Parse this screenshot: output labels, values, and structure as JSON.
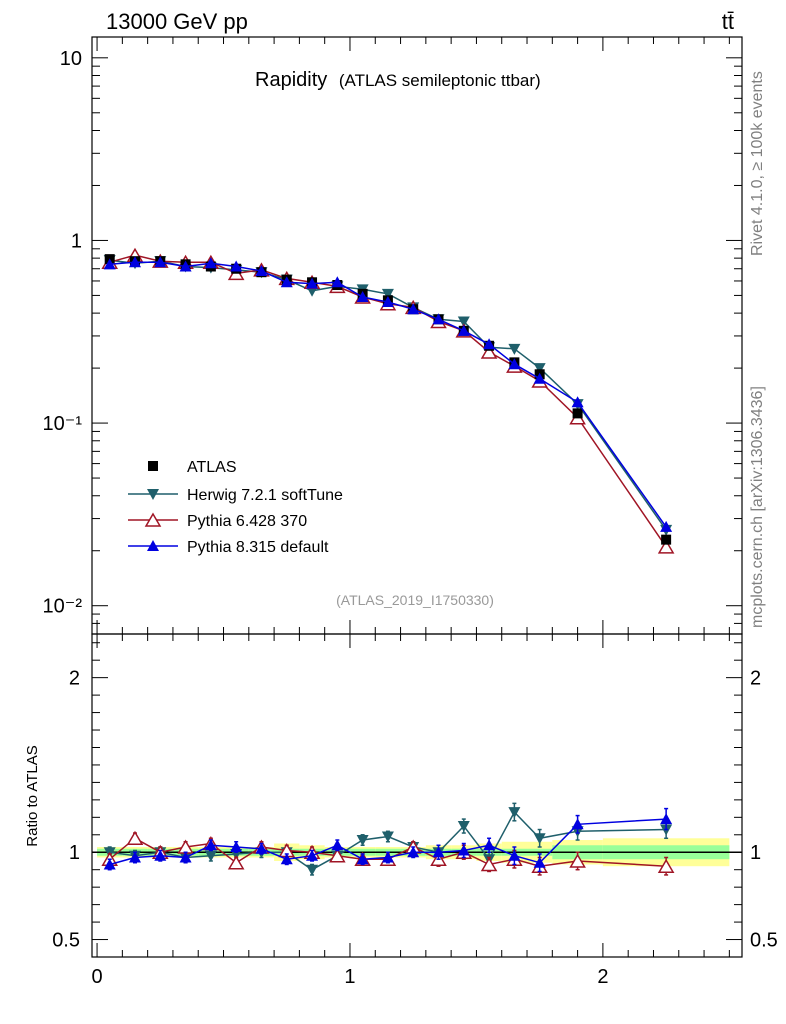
{
  "header": {
    "energy_label": "13000 GeV pp",
    "process_label": "tt̄",
    "title_main": "Rapidity",
    "title_sub": "(ATLAS semileptonic ttbar)",
    "side_label_top": "Rivet 4.1.0, ≥ 100k events",
    "side_label_bottom": "mcplots.cern.ch [arXiv:1306.3436]",
    "analysis_label": "(ATLAS_2019_I1750330)",
    "ratio_ylabel": "Ratio to ATLAS"
  },
  "colors": {
    "data": "#000000",
    "herwig": "#1f5f6b",
    "pythia6": "#a01525",
    "pythia8": "#0000e0",
    "band_outer": "#ffff99",
    "band_inner": "#99ff99",
    "analysis_label": "#999999",
    "side_label": "#808080"
  },
  "chart_data": [
    {
      "type": "scatter",
      "panel": "main",
      "yscale": "log",
      "ylim": [
        0.007,
        13
      ],
      "xlim": [
        -0.02,
        2.55
      ],
      "ytick_labels": [
        {
          "value": 10,
          "label": "10"
        },
        {
          "value": 1,
          "label": "1"
        },
        {
          "value": 0.1,
          "label": "10⁻¹"
        },
        {
          "value": 0.01,
          "label": "10⁻²"
        }
      ],
      "x": [
        0.05,
        0.15,
        0.25,
        0.35,
        0.45,
        0.55,
        0.65,
        0.75,
        0.85,
        0.95,
        1.05,
        1.15,
        1.25,
        1.35,
        1.45,
        1.55,
        1.65,
        1.75,
        1.9,
        2.25
      ],
      "series": [
        {
          "name": "ATLAS",
          "key": "data",
          "marker": "square",
          "values": [
            0.79,
            0.77,
            0.77,
            0.74,
            0.72,
            0.7,
            0.67,
            0.61,
            0.59,
            0.57,
            0.51,
            0.47,
            0.42,
            0.37,
            0.32,
            0.265,
            0.215,
            0.185,
            0.113,
            0.023
          ]
        },
        {
          "name": "Herwig 7.2.1 softTune",
          "key": "herwig",
          "marker": "triangle-down",
          "values": [
            0.78,
            0.75,
            0.77,
            0.72,
            0.71,
            0.69,
            0.67,
            0.61,
            0.53,
            0.56,
            0.54,
            0.51,
            0.43,
            0.37,
            0.36,
            0.26,
            0.255,
            0.2,
            0.127,
            0.026
          ]
        },
        {
          "name": "Pythia 6.428 370",
          "key": "pythia6",
          "marker": "triangle-up-open",
          "values": [
            0.76,
            0.83,
            0.77,
            0.76,
            0.76,
            0.66,
            0.69,
            0.62,
            0.59,
            0.56,
            0.49,
            0.45,
            0.43,
            0.36,
            0.32,
            0.245,
            0.205,
            0.17,
            0.107,
            0.021
          ]
        },
        {
          "name": "Pythia 8.315 default",
          "key": "pythia8",
          "marker": "triangle-up",
          "values": [
            0.74,
            0.76,
            0.76,
            0.72,
            0.75,
            0.72,
            0.68,
            0.59,
            0.58,
            0.59,
            0.49,
            0.46,
            0.42,
            0.37,
            0.32,
            0.27,
            0.21,
            0.175,
            0.13,
            0.027
          ]
        }
      ],
      "legend_entries": [
        "ATLAS",
        "Herwig 7.2.1 softTune",
        "Pythia 6.428 370",
        "Pythia 8.315 default"
      ],
      "legend_position": "bottom-left"
    },
    {
      "type": "scatter",
      "panel": "ratio",
      "ylabel": "Ratio to ATLAS",
      "ylim": [
        0.4,
        2.25
      ],
      "xlim": [
        -0.02,
        2.55
      ],
      "ytick_labels": [
        {
          "value": 2,
          "label": "2"
        },
        {
          "value": 1,
          "label": "1"
        },
        {
          "value": 0.5,
          "label": "0.5"
        }
      ],
      "xtick_labels": [
        {
          "value": 0,
          "label": "0"
        },
        {
          "value": 1,
          "label": "1"
        },
        {
          "value": 2,
          "label": "2"
        }
      ],
      "x": [
        0.05,
        0.15,
        0.25,
        0.35,
        0.45,
        0.55,
        0.65,
        0.75,
        0.85,
        0.95,
        1.05,
        1.15,
        1.25,
        1.35,
        1.45,
        1.55,
        1.65,
        1.75,
        1.9,
        2.25
      ],
      "bin_edges": [
        0.0,
        0.1,
        0.2,
        0.3,
        0.4,
        0.5,
        0.6,
        0.7,
        0.8,
        0.9,
        1.0,
        1.1,
        1.2,
        1.3,
        1.4,
        1.5,
        1.6,
        1.7,
        1.8,
        2.0,
        2.5
      ],
      "band_inner": [
        0.02,
        0.02,
        0.02,
        0.02,
        0.02,
        0.02,
        0.02,
        0.02,
        0.02,
        0.02,
        0.02,
        0.02,
        0.02,
        0.02,
        0.02,
        0.02,
        0.02,
        0.02,
        0.04,
        0.04
      ],
      "band_outer": [
        0.03,
        0.03,
        0.03,
        0.03,
        0.03,
        0.03,
        0.03,
        0.05,
        0.04,
        0.03,
        0.03,
        0.03,
        0.03,
        0.04,
        0.04,
        0.05,
        0.06,
        0.06,
        0.07,
        0.08
      ],
      "series": [
        {
          "name": "Herwig 7.2.1 softTune",
          "key": "herwig",
          "marker": "triangle-down",
          "values": [
            1.0,
            0.98,
            1.0,
            0.97,
            0.98,
            0.99,
            1.0,
            1.0,
            0.9,
            0.98,
            1.07,
            1.09,
            1.03,
            1.0,
            1.15,
            0.96,
            1.23,
            1.08,
            1.12,
            1.13
          ],
          "errors": [
            0.03,
            0.03,
            0.03,
            0.03,
            0.03,
            0.03,
            0.03,
            0.03,
            0.03,
            0.03,
            0.03,
            0.03,
            0.03,
            0.04,
            0.04,
            0.04,
            0.05,
            0.05,
            0.05,
            0.05
          ]
        },
        {
          "name": "Pythia 6.428 370",
          "key": "pythia6",
          "marker": "triangle-up-open",
          "values": [
            0.96,
            1.08,
            1.0,
            1.03,
            1.05,
            0.94,
            1.03,
            1.01,
            1.0,
            0.98,
            0.96,
            0.96,
            1.03,
            0.96,
            1.0,
            0.93,
            0.96,
            0.92,
            0.95,
            0.92
          ],
          "errors": [
            0.03,
            0.03,
            0.03,
            0.03,
            0.03,
            0.03,
            0.03,
            0.03,
            0.03,
            0.03,
            0.03,
            0.03,
            0.03,
            0.04,
            0.04,
            0.04,
            0.05,
            0.05,
            0.05,
            0.05
          ]
        },
        {
          "name": "Pythia 8.315 default",
          "key": "pythia8",
          "marker": "triangle-up",
          "values": [
            0.93,
            0.97,
            0.98,
            0.97,
            1.04,
            1.03,
            1.02,
            0.96,
            0.98,
            1.04,
            0.96,
            0.97,
            1.0,
            1.0,
            1.01,
            1.04,
            0.98,
            0.94,
            1.16,
            1.19
          ],
          "errors": [
            0.03,
            0.03,
            0.03,
            0.03,
            0.03,
            0.03,
            0.03,
            0.03,
            0.03,
            0.03,
            0.03,
            0.03,
            0.03,
            0.04,
            0.04,
            0.04,
            0.05,
            0.05,
            0.05,
            0.06
          ]
        }
      ]
    }
  ]
}
